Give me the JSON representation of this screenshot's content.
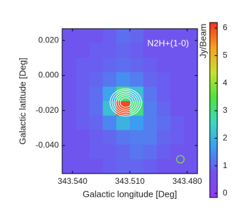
{
  "chart_data": {
    "type": "heatmap",
    "annotation": "N2H+(1-0)",
    "xlabel": "Galactic longitude [Deg]",
    "ylabel": "Galactic latitude [Deg]",
    "colorbar_label": "Jy/Beam",
    "xlim": [
      343.5454,
      343.4746
    ],
    "ylim": [
      -0.056,
      0.0267
    ],
    "xticks": [
      {
        "value": 343.54,
        "label": "343.540"
      },
      {
        "value": 343.51,
        "label": "343.510"
      },
      {
        "value": 343.48,
        "label": "343.480"
      }
    ],
    "yticks": [
      {
        "value": 0.02,
        "label": "0.020"
      },
      {
        "value": 0.0,
        "label": "0.000"
      },
      {
        "value": -0.02,
        "label": "-0.020"
      },
      {
        "value": -0.04,
        "label": "-0.040"
      }
    ],
    "clim": [
      -0.15,
      6.2
    ],
    "cticks": [
      0,
      1,
      2,
      3,
      4,
      5,
      6
    ],
    "colormap": [
      "#8a3ef0",
      "#7252ee",
      "#3c9cf2",
      "#3cd8c0",
      "#50e040",
      "#c8e030",
      "#f8a020",
      "#f03020"
    ],
    "z": [
      [
        0.8,
        0.8,
        0.8,
        0.9,
        1.1,
        1.0,
        0.8,
        0.8,
        0.8,
        0.8
      ],
      [
        0.8,
        0.8,
        0.9,
        0.9,
        1.0,
        0.9,
        0.8,
        0.8,
        0.8,
        0.8
      ],
      [
        0.8,
        0.9,
        0.9,
        1.0,
        1.1,
        1.0,
        0.9,
        0.8,
        0.8,
        0.8
      ],
      [
        0.8,
        0.9,
        1.0,
        1.2,
        1.5,
        1.3,
        1.0,
        0.9,
        0.8,
        0.8
      ],
      [
        0.8,
        0.9,
        1.1,
        1.8,
        3.0,
        2.2,
        1.2,
        0.9,
        0.8,
        0.8
      ],
      [
        0.8,
        0.9,
        1.1,
        2.2,
        6.0,
        3.0,
        1.3,
        1.0,
        0.8,
        0.8
      ],
      [
        0.8,
        0.9,
        1.0,
        1.4,
        2.0,
        1.7,
        1.3,
        1.1,
        0.9,
        0.8
      ],
      [
        0.8,
        0.8,
        0.9,
        1.0,
        1.2,
        1.3,
        1.3,
        1.0,
        0.9,
        0.8
      ],
      [
        0.8,
        0.8,
        0.9,
        0.9,
        1.0,
        1.2,
        1.1,
        0.9,
        0.8,
        0.8
      ],
      [
        0.8,
        0.8,
        0.8,
        0.9,
        1.0,
        1.0,
        0.9,
        0.8,
        0.8,
        0.8
      ]
    ]
  }
}
